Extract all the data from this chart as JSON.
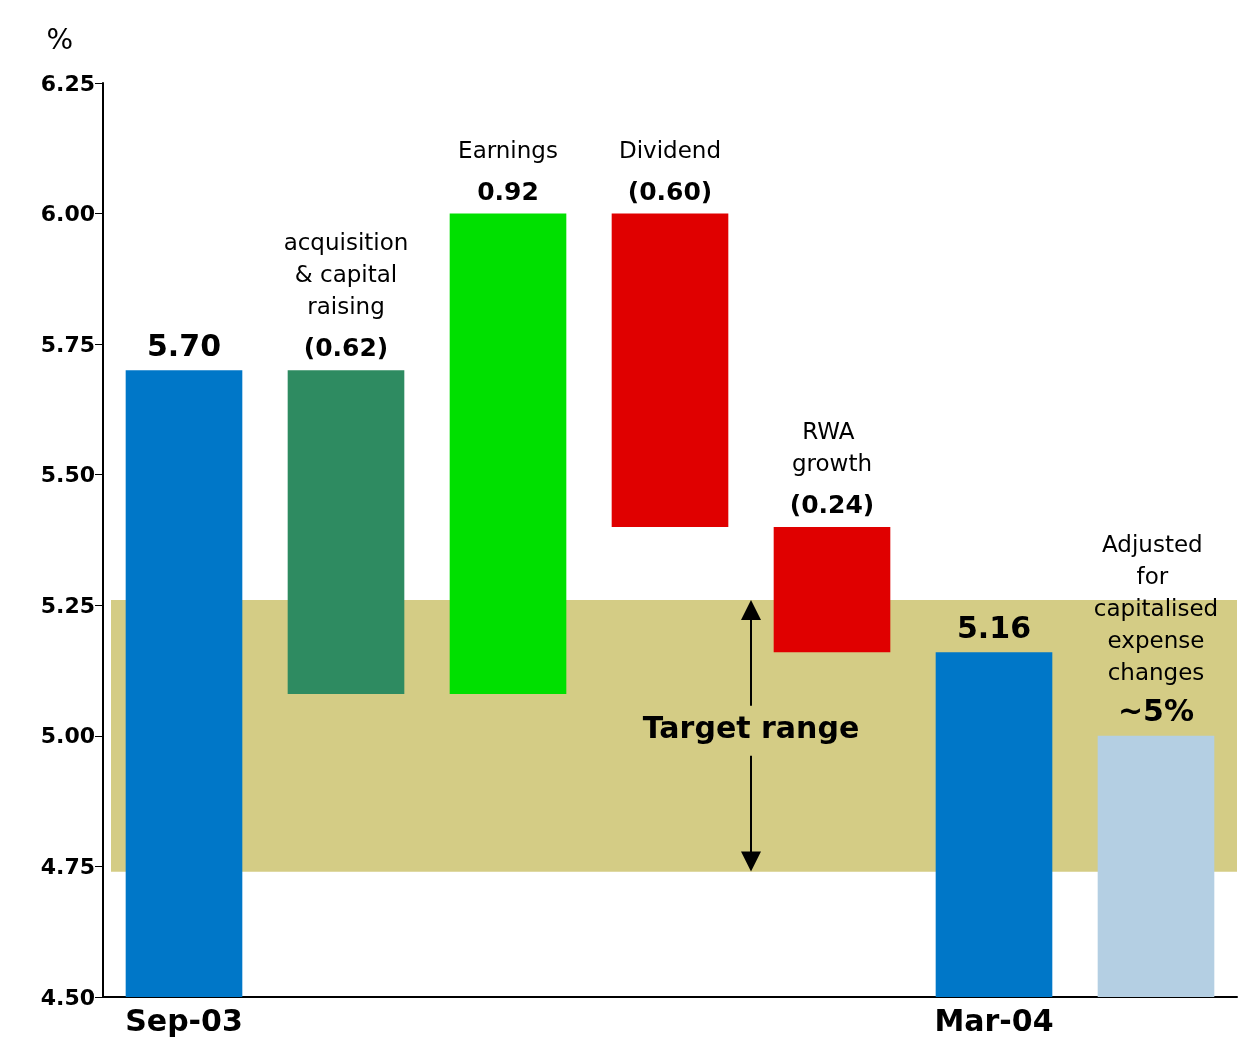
{
  "chart_data": {
    "type": "bar",
    "ylabel": "%",
    "categories": [
      "Sep-03",
      null,
      null,
      null,
      null,
      "Mar-04",
      null
    ],
    "values": [
      5.7,
      -0.62,
      0.92,
      -0.6,
      -0.24,
      5.16,
      5.0
    ],
    "base": [
      null,
      5.7,
      5.08,
      6.0,
      5.4,
      null,
      null
    ],
    "colors": [
      "#0077c8",
      "#2e8b61",
      "#00e000",
      "#e00000",
      "#e00000",
      "#0077c8",
      "#b4cfe3"
    ],
    "value_labels": [
      "5.70",
      "(0.62)",
      "0.92",
      "(0.60)",
      "(0.24)",
      "5.16",
      "~5%"
    ],
    "annotations": [
      "acquisition & capital raising",
      "Earnings",
      "Dividend",
      "RWA growth",
      "Adjusted for capitalised expense changes"
    ],
    "ylim": [
      4.5,
      6.25
    ],
    "yticks": [
      {
        "value": 4.5,
        "label": "4.50"
      },
      {
        "value": 4.75,
        "label": "4.75"
      },
      {
        "value": 5.0,
        "label": "5.00"
      },
      {
        "value": 5.25,
        "label": "5.25"
      },
      {
        "value": 5.5,
        "label": "5.50"
      },
      {
        "value": 5.75,
        "label": "5.75"
      },
      {
        "value": 6.0,
        "label": "6.00"
      },
      {
        "value": 6.25,
        "label": "6.25"
      }
    ],
    "bands": [
      {
        "axis": "y",
        "from": 4.74,
        "to": 5.26,
        "label": "Target range",
        "color": "#d4cc85"
      }
    ],
    "grid": false
  }
}
